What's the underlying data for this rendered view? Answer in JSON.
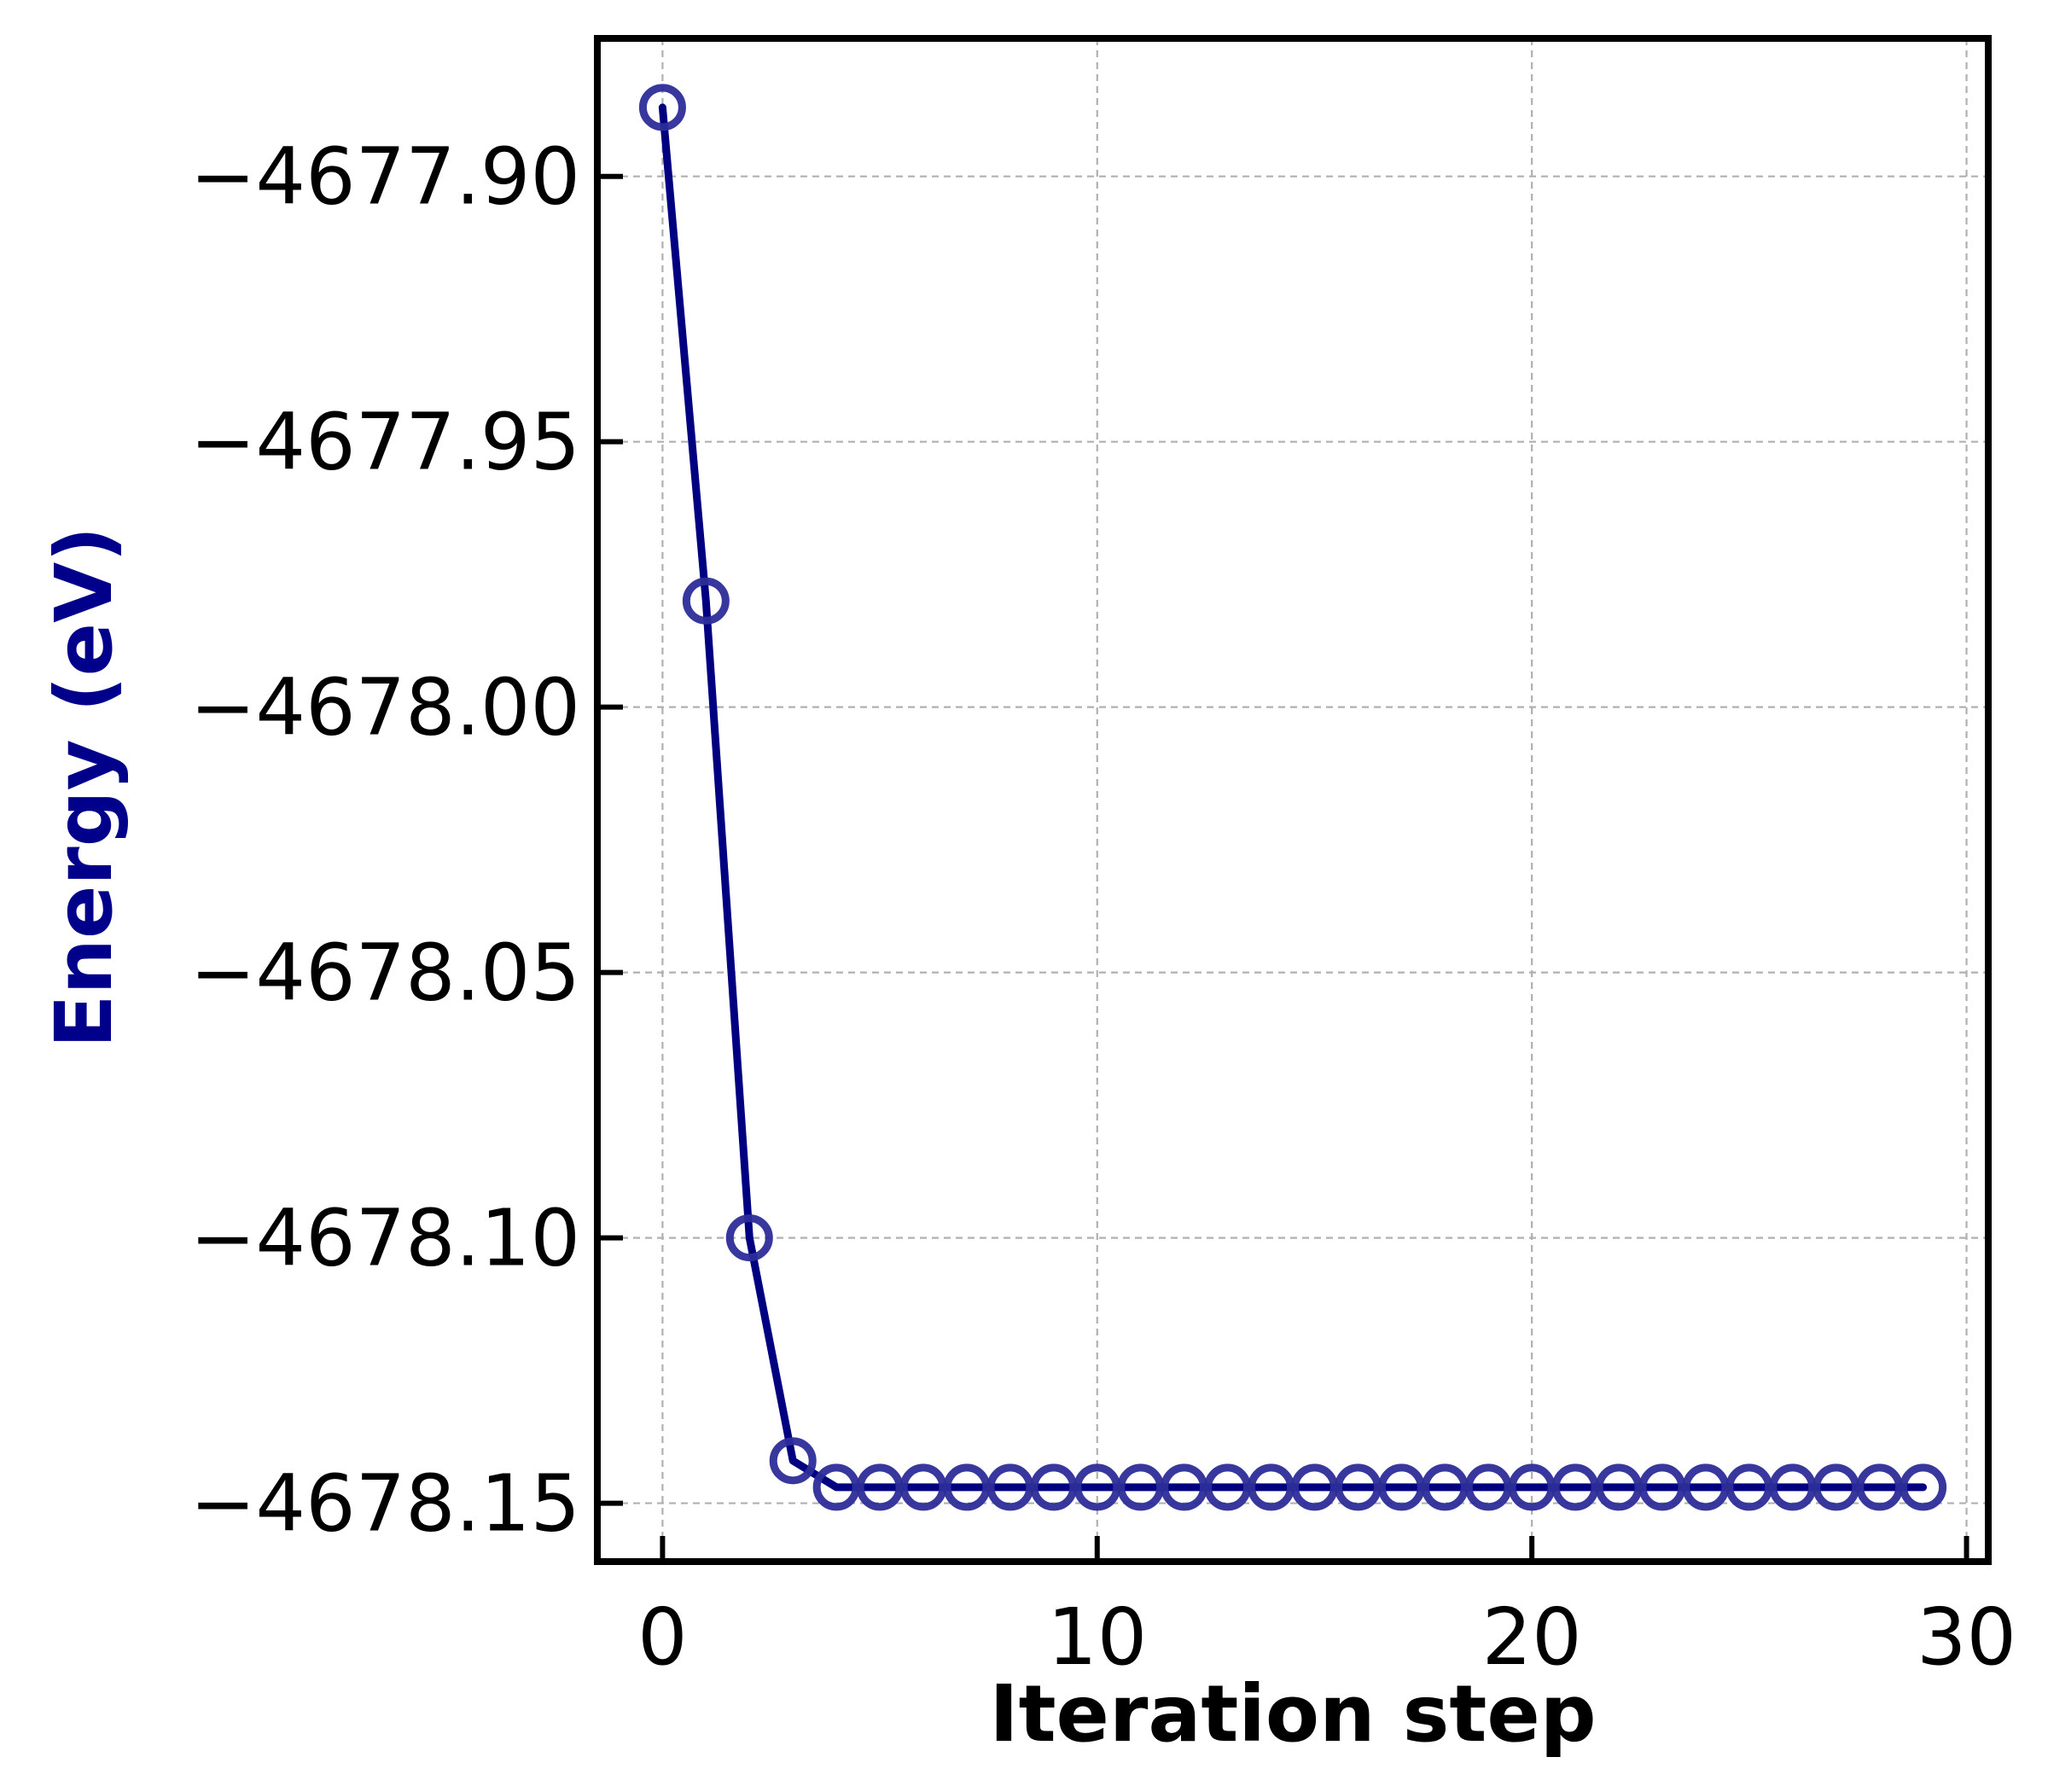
{
  "chart_data": {
    "type": "line",
    "title": "",
    "xlabel": "Iteration step",
    "ylabel": "Energy (eV)",
    "xlim": [
      -1.5,
      30.5
    ],
    "ylim": [
      -4678.161,
      -4677.874
    ],
    "xticks": [
      0,
      10,
      20,
      30
    ],
    "xtick_labels": [
      "0",
      "10",
      "20",
      "30"
    ],
    "yticks": [
      -4677.9,
      -4677.95,
      -4678.0,
      -4678.05,
      -4678.1,
      -4678.15
    ],
    "ytick_labels": [
      "−4677.90",
      "−4677.95",
      "−4678.00",
      "−4678.05",
      "−4678.10",
      "−4678.15"
    ],
    "grid": true,
    "colors": {
      "line": "#000080",
      "marker": "#2c2c99",
      "ylabel": "#00008b",
      "xlabel": "#000000",
      "grid": "#b0b0b0",
      "frame": "#000000"
    },
    "series": [
      {
        "marker": "hollow-circle",
        "x": [
          0,
          1,
          2,
          3,
          4,
          5,
          6,
          7,
          8,
          9,
          10,
          11,
          12,
          13,
          14,
          15,
          16,
          17,
          18,
          19,
          20,
          21,
          22,
          23,
          24,
          25,
          26,
          27,
          28,
          29
        ],
        "y": [
          -4677.887,
          -4677.98,
          -4678.1,
          -4678.142,
          -4678.147,
          -4678.147,
          -4678.147,
          -4678.147,
          -4678.147,
          -4678.147,
          -4678.147,
          -4678.147,
          -4678.147,
          -4678.147,
          -4678.147,
          -4678.147,
          -4678.147,
          -4678.147,
          -4678.147,
          -4678.147,
          -4678.147,
          -4678.147,
          -4678.147,
          -4678.147,
          -4678.147,
          -4678.147,
          -4678.147,
          -4678.147,
          -4678.147,
          -4678.147
        ]
      }
    ]
  }
}
